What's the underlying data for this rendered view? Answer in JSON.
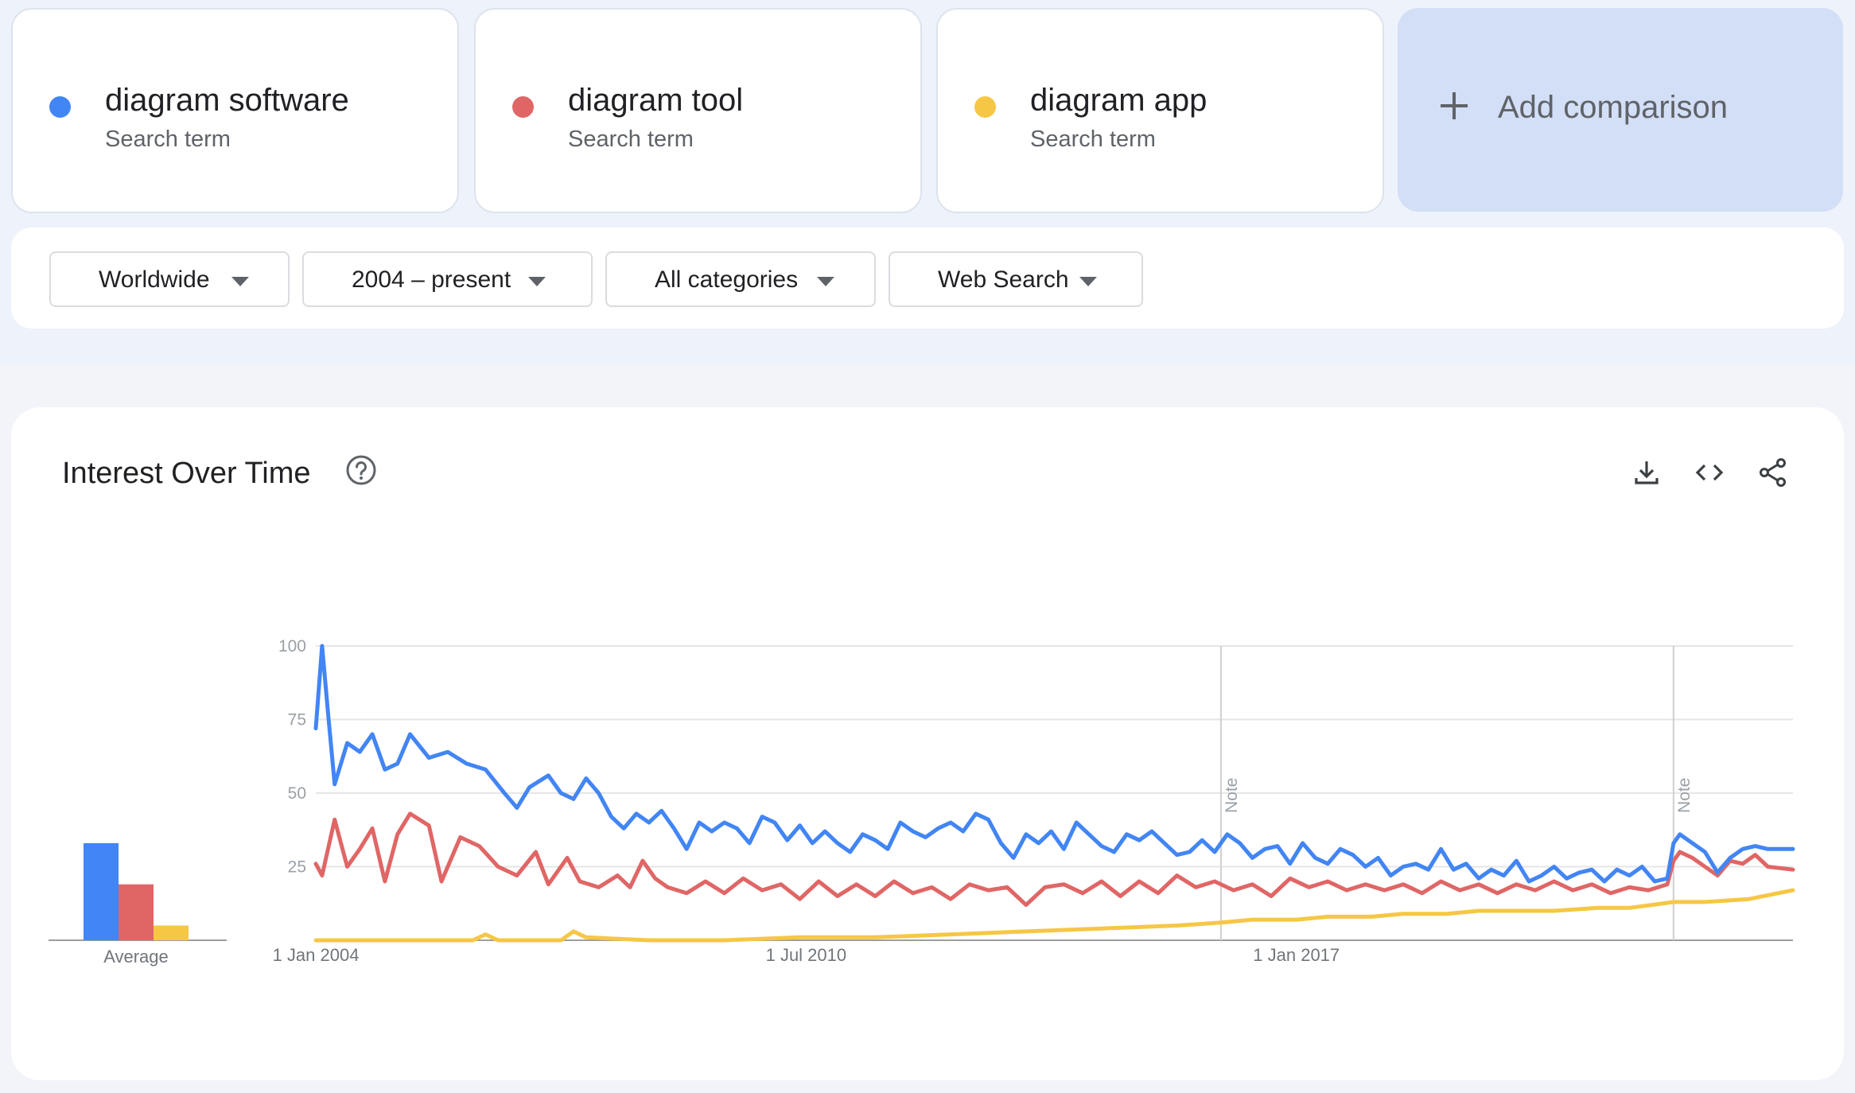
{
  "terms": [
    {
      "name": "diagram software",
      "subtitle": "Search term",
      "color": "#4285f4"
    },
    {
      "name": "diagram tool",
      "subtitle": "Search term",
      "color": "#e06666"
    },
    {
      "name": "diagram app",
      "subtitle": "Search term",
      "color": "#f6c745"
    }
  ],
  "add_comparison": {
    "label": "Add comparison",
    "icon": "plus-icon"
  },
  "filters": [
    {
      "label": "Worldwide"
    },
    {
      "label": "2004 – present"
    },
    {
      "label": "All categories"
    },
    {
      "label": "Web Search"
    }
  ],
  "chart_card": {
    "title": "Interest Over Time",
    "help_icon": "help-circle-icon",
    "tools": [
      "download-icon",
      "embed-code-icon",
      "share-icon"
    ]
  },
  "chart_data": {
    "type": "line",
    "y_ticks": [
      "100",
      "75",
      "50",
      "25"
    ],
    "ylim": [
      0,
      100
    ],
    "x_labels": [
      {
        "label": "1 Jan 2004",
        "date": "2004-01"
      },
      {
        "label": "1 Jul 2010",
        "date": "2010-07"
      },
      {
        "label": "1 Jan 2017",
        "date": "2017-01"
      }
    ],
    "xlim": [
      "2004-01",
      "2023-08"
    ],
    "notes": [
      {
        "label": "Note",
        "date": "2016-01"
      },
      {
        "label": "Note",
        "date": "2022-01"
      }
    ],
    "average": {
      "label": "Average",
      "values": [
        33,
        19,
        5
      ]
    },
    "series": [
      {
        "name": "diagram software",
        "color": "#4285f4",
        "points": [
          [
            "2004-01",
            72
          ],
          [
            "2004-02",
            100
          ],
          [
            "2004-03",
            76
          ],
          [
            "2004-04",
            53
          ],
          [
            "2004-06",
            67
          ],
          [
            "2004-08",
            64
          ],
          [
            "2004-10",
            70
          ],
          [
            "2004-12",
            58
          ],
          [
            "2005-02",
            60
          ],
          [
            "2005-04",
            70
          ],
          [
            "2005-07",
            62
          ],
          [
            "2005-10",
            64
          ],
          [
            "2006-01",
            60
          ],
          [
            "2006-04",
            58
          ],
          [
            "2006-07",
            50
          ],
          [
            "2006-09",
            45
          ],
          [
            "2006-11",
            52
          ],
          [
            "2007-02",
            56
          ],
          [
            "2007-04",
            50
          ],
          [
            "2007-06",
            48
          ],
          [
            "2007-08",
            55
          ],
          [
            "2007-10",
            50
          ],
          [
            "2007-12",
            42
          ],
          [
            "2008-02",
            38
          ],
          [
            "2008-04",
            43
          ],
          [
            "2008-06",
            40
          ],
          [
            "2008-08",
            44
          ],
          [
            "2008-10",
            38
          ],
          [
            "2008-12",
            31
          ],
          [
            "2009-02",
            40
          ],
          [
            "2009-04",
            37
          ],
          [
            "2009-06",
            40
          ],
          [
            "2009-08",
            38
          ],
          [
            "2009-10",
            33
          ],
          [
            "2009-12",
            42
          ],
          [
            "2010-02",
            40
          ],
          [
            "2010-04",
            34
          ],
          [
            "2010-06",
            39
          ],
          [
            "2010-08",
            33
          ],
          [
            "2010-10",
            37
          ],
          [
            "2010-12",
            33
          ],
          [
            "2011-02",
            30
          ],
          [
            "2011-04",
            36
          ],
          [
            "2011-06",
            34
          ],
          [
            "2011-08",
            31
          ],
          [
            "2011-10",
            40
          ],
          [
            "2011-12",
            37
          ],
          [
            "2012-02",
            35
          ],
          [
            "2012-04",
            38
          ],
          [
            "2012-06",
            40
          ],
          [
            "2012-08",
            37
          ],
          [
            "2012-10",
            43
          ],
          [
            "2012-12",
            41
          ],
          [
            "2013-02",
            33
          ],
          [
            "2013-04",
            28
          ],
          [
            "2013-06",
            36
          ],
          [
            "2013-08",
            33
          ],
          [
            "2013-10",
            37
          ],
          [
            "2013-12",
            31
          ],
          [
            "2014-02",
            40
          ],
          [
            "2014-04",
            36
          ],
          [
            "2014-06",
            32
          ],
          [
            "2014-08",
            30
          ],
          [
            "2014-10",
            36
          ],
          [
            "2014-12",
            34
          ],
          [
            "2015-02",
            37
          ],
          [
            "2015-04",
            33
          ],
          [
            "2015-06",
            29
          ],
          [
            "2015-08",
            30
          ],
          [
            "2015-10",
            34
          ],
          [
            "2015-12",
            30
          ],
          [
            "2016-02",
            36
          ],
          [
            "2016-04",
            33
          ],
          [
            "2016-06",
            28
          ],
          [
            "2016-08",
            31
          ],
          [
            "2016-10",
            32
          ],
          [
            "2016-12",
            26
          ],
          [
            "2017-02",
            33
          ],
          [
            "2017-04",
            28
          ],
          [
            "2017-06",
            26
          ],
          [
            "2017-08",
            31
          ],
          [
            "2017-10",
            29
          ],
          [
            "2017-12",
            25
          ],
          [
            "2018-02",
            28
          ],
          [
            "2018-04",
            22
          ],
          [
            "2018-06",
            25
          ],
          [
            "2018-08",
            26
          ],
          [
            "2018-10",
            24
          ],
          [
            "2018-12",
            31
          ],
          [
            "2019-02",
            24
          ],
          [
            "2019-04",
            26
          ],
          [
            "2019-06",
            21
          ],
          [
            "2019-08",
            24
          ],
          [
            "2019-10",
            22
          ],
          [
            "2019-12",
            27
          ],
          [
            "2020-02",
            20
          ],
          [
            "2020-04",
            22
          ],
          [
            "2020-06",
            25
          ],
          [
            "2020-08",
            21
          ],
          [
            "2020-10",
            23
          ],
          [
            "2020-12",
            24
          ],
          [
            "2021-02",
            20
          ],
          [
            "2021-04",
            24
          ],
          [
            "2021-06",
            22
          ],
          [
            "2021-08",
            25
          ],
          [
            "2021-10",
            20
          ],
          [
            "2021-12",
            21
          ],
          [
            "2022-01",
            33
          ],
          [
            "2022-02",
            36
          ],
          [
            "2022-04",
            33
          ],
          [
            "2022-06",
            30
          ],
          [
            "2022-08",
            23
          ],
          [
            "2022-10",
            28
          ],
          [
            "2022-12",
            31
          ],
          [
            "2023-02",
            32
          ],
          [
            "2023-04",
            31
          ],
          [
            "2023-08",
            31
          ]
        ]
      },
      {
        "name": "diagram tool",
        "color": "#e06666",
        "points": [
          [
            "2004-01",
            26
          ],
          [
            "2004-02",
            22
          ],
          [
            "2004-04",
            41
          ],
          [
            "2004-06",
            25
          ],
          [
            "2004-08",
            31
          ],
          [
            "2004-10",
            38
          ],
          [
            "2004-12",
            20
          ],
          [
            "2005-02",
            36
          ],
          [
            "2005-04",
            43
          ],
          [
            "2005-07",
            39
          ],
          [
            "2005-09",
            20
          ],
          [
            "2005-12",
            35
          ],
          [
            "2006-03",
            32
          ],
          [
            "2006-06",
            25
          ],
          [
            "2006-09",
            22
          ],
          [
            "2006-12",
            30
          ],
          [
            "2007-02",
            19
          ],
          [
            "2007-05",
            28
          ],
          [
            "2007-07",
            20
          ],
          [
            "2007-10",
            18
          ],
          [
            "2008-01",
            22
          ],
          [
            "2008-03",
            18
          ],
          [
            "2008-05",
            27
          ],
          [
            "2008-07",
            21
          ],
          [
            "2008-09",
            18
          ],
          [
            "2008-12",
            16
          ],
          [
            "2009-03",
            20
          ],
          [
            "2009-06",
            16
          ],
          [
            "2009-09",
            21
          ],
          [
            "2009-12",
            17
          ],
          [
            "2010-03",
            19
          ],
          [
            "2010-06",
            14
          ],
          [
            "2010-09",
            20
          ],
          [
            "2010-12",
            15
          ],
          [
            "2011-03",
            19
          ],
          [
            "2011-06",
            15
          ],
          [
            "2011-09",
            20
          ],
          [
            "2011-12",
            16
          ],
          [
            "2012-03",
            18
          ],
          [
            "2012-06",
            14
          ],
          [
            "2012-09",
            19
          ],
          [
            "2012-12",
            17
          ],
          [
            "2013-03",
            18
          ],
          [
            "2013-06",
            12
          ],
          [
            "2013-09",
            18
          ],
          [
            "2013-12",
            19
          ],
          [
            "2014-03",
            16
          ],
          [
            "2014-06",
            20
          ],
          [
            "2014-09",
            15
          ],
          [
            "2014-12",
            20
          ],
          [
            "2015-03",
            16
          ],
          [
            "2015-06",
            22
          ],
          [
            "2015-09",
            18
          ],
          [
            "2015-12",
            20
          ],
          [
            "2016-03",
            17
          ],
          [
            "2016-06",
            19
          ],
          [
            "2016-09",
            15
          ],
          [
            "2016-12",
            21
          ],
          [
            "2017-03",
            18
          ],
          [
            "2017-06",
            20
          ],
          [
            "2017-09",
            17
          ],
          [
            "2017-12",
            19
          ],
          [
            "2018-03",
            17
          ],
          [
            "2018-06",
            19
          ],
          [
            "2018-09",
            16
          ],
          [
            "2018-12",
            20
          ],
          [
            "2019-03",
            17
          ],
          [
            "2019-06",
            19
          ],
          [
            "2019-09",
            16
          ],
          [
            "2019-12",
            19
          ],
          [
            "2020-03",
            17
          ],
          [
            "2020-06",
            20
          ],
          [
            "2020-09",
            17
          ],
          [
            "2020-12",
            19
          ],
          [
            "2021-03",
            16
          ],
          [
            "2021-06",
            18
          ],
          [
            "2021-09",
            17
          ],
          [
            "2021-12",
            19
          ],
          [
            "2022-01",
            27
          ],
          [
            "2022-02",
            30
          ],
          [
            "2022-04",
            28
          ],
          [
            "2022-06",
            25
          ],
          [
            "2022-08",
            22
          ],
          [
            "2022-10",
            27
          ],
          [
            "2022-12",
            26
          ],
          [
            "2023-02",
            29
          ],
          [
            "2023-04",
            25
          ],
          [
            "2023-08",
            24
          ]
        ]
      },
      {
        "name": "diagram app",
        "color": "#f6c745",
        "points": [
          [
            "2004-01",
            0
          ],
          [
            "2005-06",
            0
          ],
          [
            "2006-02",
            0
          ],
          [
            "2006-04",
            2
          ],
          [
            "2006-06",
            0
          ],
          [
            "2007-04",
            0
          ],
          [
            "2007-06",
            3
          ],
          [
            "2007-08",
            1
          ],
          [
            "2008-06",
            0
          ],
          [
            "2009-06",
            0
          ],
          [
            "2010-06",
            1
          ],
          [
            "2011-06",
            1
          ],
          [
            "2012-06",
            2
          ],
          [
            "2013-06",
            3
          ],
          [
            "2014-06",
            4
          ],
          [
            "2015-06",
            5
          ],
          [
            "2016-01",
            6
          ],
          [
            "2016-06",
            7
          ],
          [
            "2017-01",
            7
          ],
          [
            "2017-06",
            8
          ],
          [
            "2018-01",
            8
          ],
          [
            "2018-06",
            9
          ],
          [
            "2019-01",
            9
          ],
          [
            "2019-06",
            10
          ],
          [
            "2020-01",
            10
          ],
          [
            "2020-06",
            10
          ],
          [
            "2021-01",
            11
          ],
          [
            "2021-06",
            11
          ],
          [
            "2022-01",
            13
          ],
          [
            "2022-06",
            13
          ],
          [
            "2023-01",
            14
          ],
          [
            "2023-08",
            17
          ]
        ]
      }
    ]
  }
}
